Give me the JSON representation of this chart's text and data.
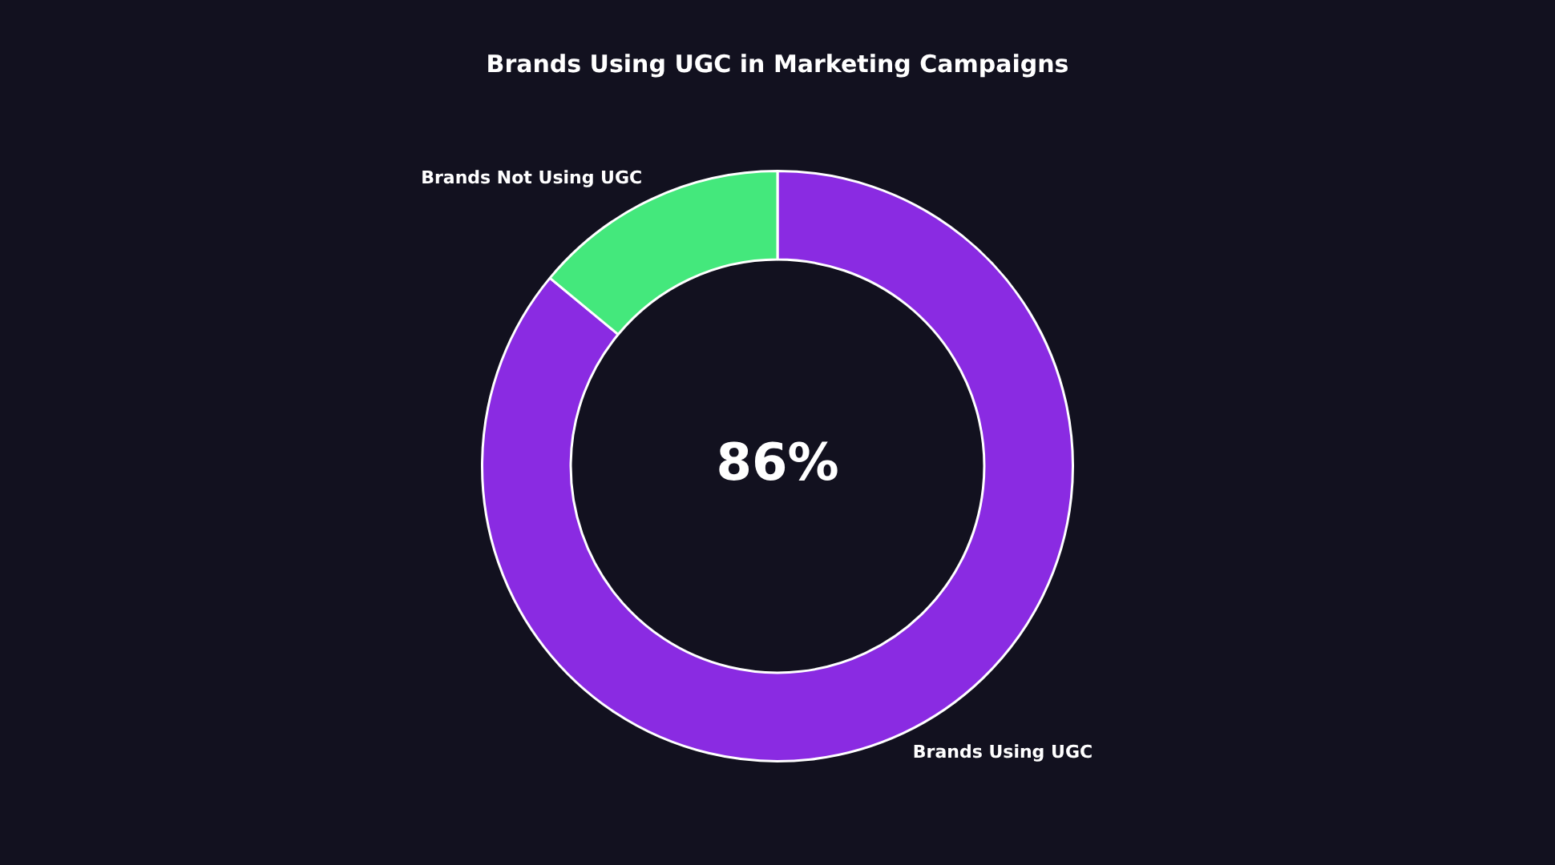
{
  "chart_data": {
    "type": "donut",
    "title": "Brands Using UGC in Marketing Campaigns",
    "categories": [
      "Brands Using UGC",
      "Brands Not Using UGC"
    ],
    "values": [
      86,
      14
    ],
    "colors": [
      "#8a2be2",
      "#44e87c"
    ],
    "annotations": [
      "86%"
    ],
    "legend": false
  }
}
